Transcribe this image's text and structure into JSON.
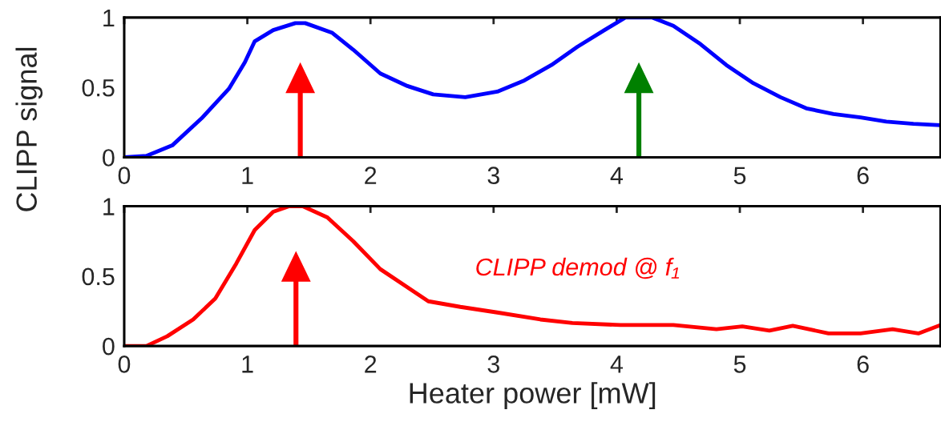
{
  "chart_data": [
    {
      "type": "line",
      "ylabel": "CLIPP signal",
      "xlim": [
        0,
        6.63
      ],
      "ylim": [
        0,
        1
      ],
      "xticks": [
        0,
        1,
        2,
        3,
        4,
        5,
        6
      ],
      "yticks": [
        0,
        0.5,
        1
      ],
      "grid": false,
      "legend": false,
      "series": [
        {
          "color": "#0000ff",
          "x": [
            0,
            0.18,
            0.39,
            0.63,
            0.85,
            0.98,
            1.06,
            1.21,
            1.39,
            1.47,
            1.69,
            1.86,
            2.08,
            2.3,
            2.51,
            2.77,
            3.03,
            3.25,
            3.47,
            3.68,
            3.9,
            4.07,
            4.29,
            4.46,
            4.68,
            4.89,
            5.11,
            5.33,
            5.54,
            5.76,
            5.98,
            6.19,
            6.41,
            6.63
          ],
          "values": [
            0,
            0.01,
            0.085,
            0.28,
            0.49,
            0.68,
            0.83,
            0.91,
            0.96,
            0.96,
            0.89,
            0.77,
            0.6,
            0.51,
            0.45,
            0.43,
            0.47,
            0.55,
            0.66,
            0.79,
            0.91,
            1.0,
            1.0,
            0.94,
            0.81,
            0.66,
            0.53,
            0.43,
            0.35,
            0.31,
            0.285,
            0.255,
            0.24,
            0.23
          ]
        }
      ]
    },
    {
      "type": "line",
      "xlabel": "Heater power [mW]",
      "xlim": [
        0,
        6.63
      ],
      "ylim": [
        0,
        1
      ],
      "xticks": [
        0,
        1,
        2,
        3,
        4,
        5,
        6
      ],
      "yticks": [
        0,
        0.5,
        1
      ],
      "grid": false,
      "legend": false,
      "series": [
        {
          "name": "CLIPP demod @ f₁",
          "color": "#ff0000",
          "x": [
            0,
            0.18,
            0.35,
            0.56,
            0.74,
            0.91,
            1.06,
            1.21,
            1.34,
            1.45,
            1.65,
            1.86,
            2.08,
            2.3,
            2.47,
            2.73,
            3.03,
            3.38,
            3.64,
            4.03,
            4.46,
            4.81,
            5.02,
            5.24,
            5.43,
            5.72,
            5.98,
            6.24,
            6.45,
            6.63
          ],
          "values": [
            0,
            0,
            0.07,
            0.19,
            0.34,
            0.59,
            0.83,
            0.96,
            1.0,
            1.0,
            0.92,
            0.75,
            0.55,
            0.42,
            0.32,
            0.28,
            0.24,
            0.19,
            0.165,
            0.15,
            0.15,
            0.12,
            0.14,
            0.11,
            0.145,
            0.09,
            0.09,
            0.12,
            0.09,
            0.15
          ]
        }
      ]
    }
  ]
}
